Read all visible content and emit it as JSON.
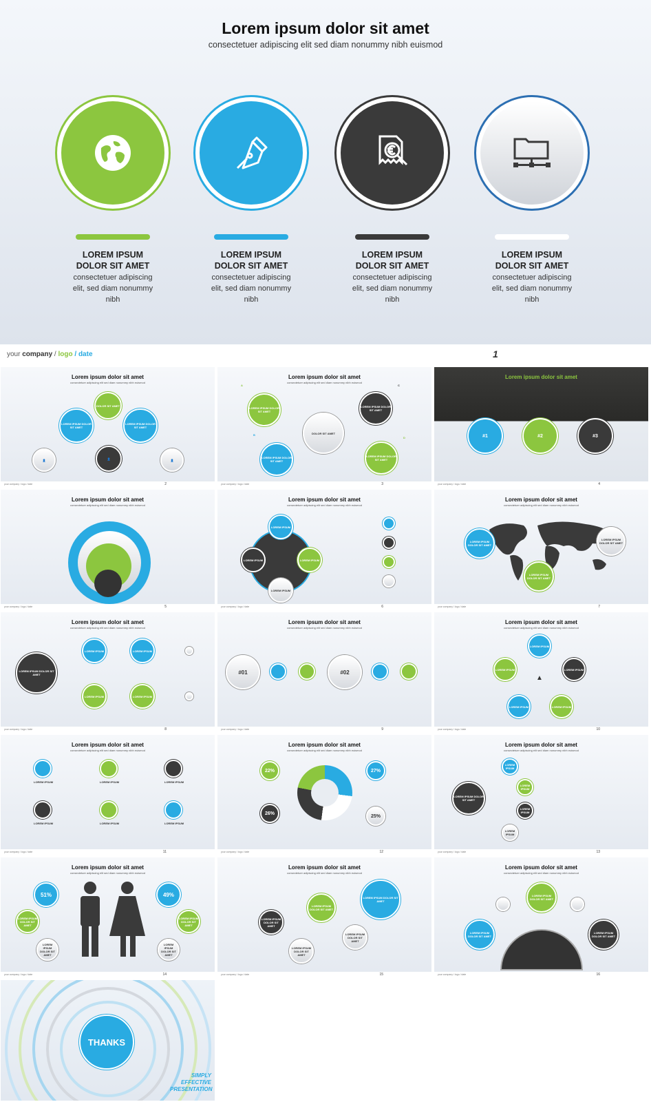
{
  "main": {
    "title": "Lorem ipsum dolor sit amet",
    "subtitle": "consectetuer adipiscing elit  sed diam nonummy nibh euismod",
    "features": [
      {
        "title1": "LOREM IPSUM",
        "title2": "DOLOR SIT AMET",
        "desc1": "consectetuer adipiscing",
        "desc2": "elit, sed diam nonummy",
        "desc3": "nibh",
        "icon": "globe-icon",
        "color": "#8cc63f"
      },
      {
        "title1": "LOREM IPSUM",
        "title2": "DOLOR SIT AMET",
        "desc1": "consectetuer adipiscing",
        "desc2": "elit, sed diam nonummy",
        "desc3": "nibh",
        "icon": "pen-nib-icon",
        "color": "#29abe2"
      },
      {
        "title1": "LOREM IPSUM",
        "title2": "DOLOR SIT AMET",
        "desc1": "consectetuer adipiscing",
        "desc2": "elit, sed diam nonummy",
        "desc3": "nibh",
        "icon": "euro-search-icon",
        "color": "#3a3a3a"
      },
      {
        "title1": "LOREM IPSUM",
        "title2": "DOLOR SIT AMET",
        "desc1": "consectetuer adipiscing",
        "desc2": "elit, sed diam nonummy",
        "desc3": "nibh",
        "icon": "network-folder-icon",
        "color": "#e8eaee"
      }
    ]
  },
  "footer": {
    "your": "your",
    "company": "company",
    "sep1": "/",
    "logo": "logo",
    "sep2": "/",
    "date": "date",
    "page": "1"
  },
  "thumbs": {
    "title": "Lorem ipsum dolor sit amet",
    "subtitle": "consectetuer adipiscing elit  sed diam nonummy nibh euismod",
    "footer_brand": "your  company / logo / date",
    "lorem_ipsum": "LOREM IPSUM",
    "lorem_dolor": "LOREM IPSUM DOLOR SIT AMET",
    "dolor_sit_amet": "DOLOR SIT AMET",
    "dolor_sit": "DOLOR SIT AMET",
    "tiny_text": "consectetuer adipiscing elit, sed diam nonummy nibh",
    "labels_abcd": [
      "A",
      "B",
      "C",
      "D"
    ],
    "slide4_title": "Lorem ipsum dolor sit amet",
    "slide4_tags": [
      "#1",
      "#2",
      "#3"
    ],
    "slide9_tags": [
      "#01",
      "#02"
    ],
    "slide12_pcts": [
      "22%",
      "27%",
      "26%",
      "25%"
    ],
    "slide14_pcts": [
      "51%",
      "49%"
    ],
    "thanks": "THANKS",
    "simply": "SIMPLY",
    "effective": "EFFECTIVE",
    "presentation": "PRESENTATION",
    "page_numbers": [
      "2",
      "3",
      "4",
      "5",
      "6",
      "7",
      "8",
      "9",
      "10",
      "11",
      "12",
      "13",
      "14",
      "15",
      "16"
    ]
  },
  "colors": {
    "green": "#8cc63f",
    "blue": "#29abe2",
    "dark": "#3a3a3a",
    "light": "#e8eaee"
  }
}
